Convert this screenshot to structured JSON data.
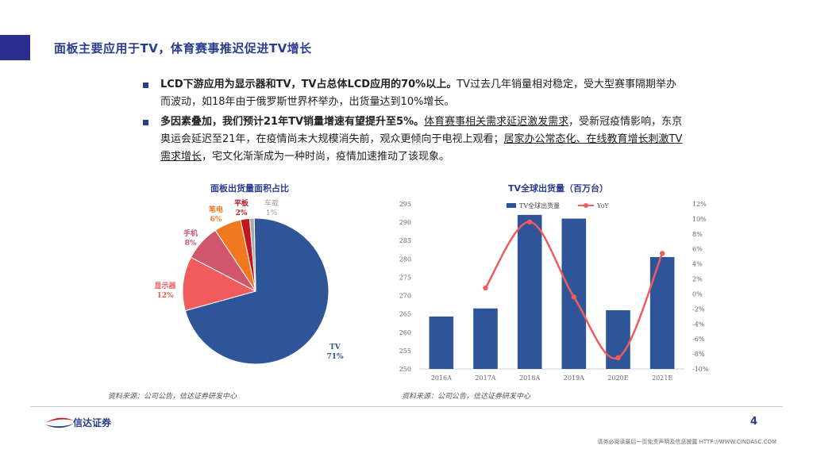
{
  "page": {
    "title": "面板主要应用于TV，体育赛事推迟促进TV增长",
    "page_number": "4",
    "footer_logo_text": "信达证券",
    "disclaimer": "请务必阅读最后一页免责声明及信息披露  HTTP://WWW.CINDASC.COM"
  },
  "bullets": [
    {
      "bold_part": "LCD下游应用为显示器和TV，TV占总体LCD应用的70%以上。",
      "rest_part": "TV过去几年销量相对稳定，受大型赛事隔期举办而波动，如18年由于俄罗斯世界杯举办，出货量达到10%增长。"
    },
    {
      "bold_part": "多因素叠加，我们预计21年TV销量增速有望提升至5%。",
      "underline_part": "体育赛事相关需求延迟激发需求",
      "mid_part": "，受新冠疫情影响，东京奥运会延迟至21年，在疫情尚未大规模消失前，观众更倾向于电视上观看；",
      "underline_part2": "居家办公常态化、在线教育增长刺激TV需求增长",
      "end_part": "，宅文化渐渐成为一种时尚，疫情加速推动了该现象。"
    }
  ],
  "left_source": "资料来源：公司公告，信达证券研发中心",
  "right_source": "资料来源：公司公告，信达证券研发中心",
  "chart_data": [
    {
      "type": "pie",
      "title": "面板出货量面积占比",
      "slices": [
        {
          "label": "TV",
          "value": 71,
          "value_label": "71%",
          "color": "#2e5597"
        },
        {
          "label": "显示器",
          "value": 12,
          "value_label": "12%",
          "color": "#f05c5c"
        },
        {
          "label": "手机",
          "value": 8,
          "value_label": "8%",
          "color": "#d0576b"
        },
        {
          "label": "笔电",
          "value": 6,
          "value_label": "6%",
          "color": "#f07820"
        },
        {
          "label": "平板",
          "value": 2,
          "value_label": "2%",
          "color": "#c0161e"
        },
        {
          "label": "车载",
          "value": 1,
          "value_label": "1%",
          "color": "#aaaaaa"
        }
      ]
    },
    {
      "type": "bar",
      "title": "TV全球出货量（百万台）",
      "categories": [
        "2016A",
        "2017A",
        "2018A",
        "2019A",
        "2020E",
        "2021E"
      ],
      "series": [
        {
          "name": "TV全球出货量",
          "type": "bar",
          "axis": "left",
          "color": "#2e5597",
          "values": [
            264.3,
            266.5,
            292.0,
            291.0,
            266.0,
            280.5
          ]
        },
        {
          "name": "YoY",
          "type": "line",
          "axis": "right",
          "color": "#f05c5c",
          "values": [
            null,
            0.8,
            9.6,
            -0.4,
            -8.5,
            5.4
          ]
        }
      ],
      "ylim_left": [
        250,
        295
      ],
      "yticks_left": [
        "250",
        "255",
        "260",
        "265",
        "270",
        "275",
        "280",
        "285",
        "290",
        "295"
      ],
      "ylim_right": [
        -10,
        12
      ],
      "yticks_right": [
        "-10%",
        "-8%",
        "-6%",
        "-4%",
        "-2%",
        "0%",
        "2%",
        "4%",
        "6%",
        "8%",
        "10%",
        "12%"
      ],
      "legend_position": "top"
    }
  ]
}
